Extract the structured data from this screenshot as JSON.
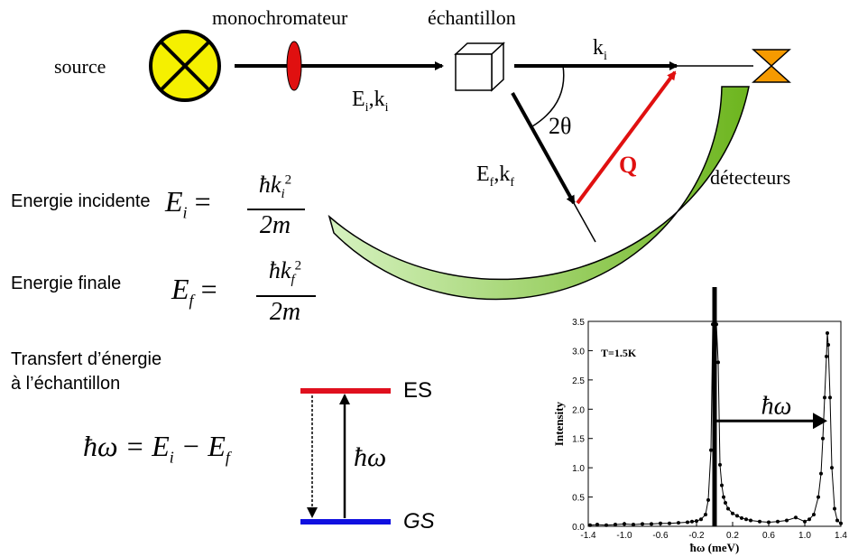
{
  "setup": {
    "source": "source",
    "monochromator": "monochromateur",
    "sample": "échantillon",
    "detectors": "détecteurs",
    "incident_vector": "E",
    "incident_vector_sub": "i",
    "incident_vector_k": ",k",
    "incident_vector_k_sub": "i",
    "ki": "k",
    "ki_sub": "i",
    "final_vector": "E",
    "final_vector_sub": "f",
    "final_vector_k": ",k",
    "final_vector_k_sub": "f",
    "angle": "2θ",
    "q_vector": "Q"
  },
  "equations": {
    "incident_label": "Energie incidente",
    "final_label": "Energie finale",
    "transfer_label_1": "Transfert d’énergie",
    "transfer_label_2": "à l’échantillon",
    "ei_lhs": "E",
    "ei_lhs_sub": "i",
    "ei_num": "ħk",
    "ei_num_sub": "i",
    "ei_num_sup": "2",
    "ei_den": "2m",
    "ef_lhs": "E",
    "ef_lhs_sub": "f",
    "ef_num": "ħk",
    "ef_num_sub": "f",
    "ef_num_sup": "2",
    "ef_den": "2m",
    "transfer": "ħω = E",
    "transfer_i": "i",
    "transfer_minus": " − E",
    "transfer_f": "f"
  },
  "levels": {
    "excited": "ES",
    "ground": "GS",
    "hbar_omega": "ħω",
    "excited_color": "#e0101e",
    "ground_color": "#1010e0"
  },
  "colors": {
    "source": "#f5f000",
    "monochromator": "#e01010",
    "detector_start": "#d6f2c0",
    "detector_end": "#6db51e",
    "analyzer": "#f59a00",
    "q_arrow": "#e01010"
  },
  "chart_data": {
    "type": "scatter",
    "xlabel": "ħω (meV)",
    "ylabel": "Intensity",
    "annotation": "T=1.5K",
    "arrow_label": "ħω",
    "xlim": [
      -1.4,
      1.4
    ],
    "ylim": [
      0,
      3.5
    ],
    "xticks": [
      "-1.4",
      "-1.0",
      "-0.6",
      "-0.2",
      "0.2",
      "0.6",
      "1.0",
      "1.4"
    ],
    "yticks": [
      "0.0",
      "0.5",
      "1.0",
      "1.5",
      "2.0",
      "2.5",
      "3.0",
      "3.5"
    ],
    "elastic_line_x": 0.0,
    "arrow_from": 0.0,
    "arrow_to": 1.25,
    "arrow_y": 1.8,
    "x": [
      -1.38,
      -1.3,
      -1.2,
      -1.1,
      -1.0,
      -0.9,
      -0.8,
      -0.7,
      -0.6,
      -0.5,
      -0.4,
      -0.3,
      -0.25,
      -0.2,
      -0.15,
      -0.1,
      -0.07,
      -0.04,
      -0.02,
      0.02,
      0.04,
      0.06,
      0.08,
      0.1,
      0.12,
      0.15,
      0.2,
      0.25,
      0.3,
      0.35,
      0.4,
      0.5,
      0.6,
      0.7,
      0.8,
      0.9,
      1.0,
      1.05,
      1.1,
      1.15,
      1.18,
      1.2,
      1.22,
      1.24,
      1.25,
      1.26,
      1.28,
      1.3,
      1.33,
      1.36,
      1.4
    ],
    "y": [
      0.02,
      0.03,
      0.02,
      0.03,
      0.04,
      0.03,
      0.04,
      0.04,
      0.05,
      0.05,
      0.06,
      0.07,
      0.08,
      0.09,
      0.12,
      0.2,
      0.45,
      1.3,
      3.45,
      3.45,
      2.8,
      1.05,
      0.7,
      0.5,
      0.4,
      0.3,
      0.22,
      0.18,
      0.14,
      0.12,
      0.1,
      0.08,
      0.07,
      0.08,
      0.1,
      0.15,
      0.08,
      0.12,
      0.2,
      0.5,
      0.9,
      1.5,
      2.2,
      2.9,
      3.3,
      3.1,
      2.2,
      1.0,
      0.3,
      0.1,
      0.05
    ]
  }
}
